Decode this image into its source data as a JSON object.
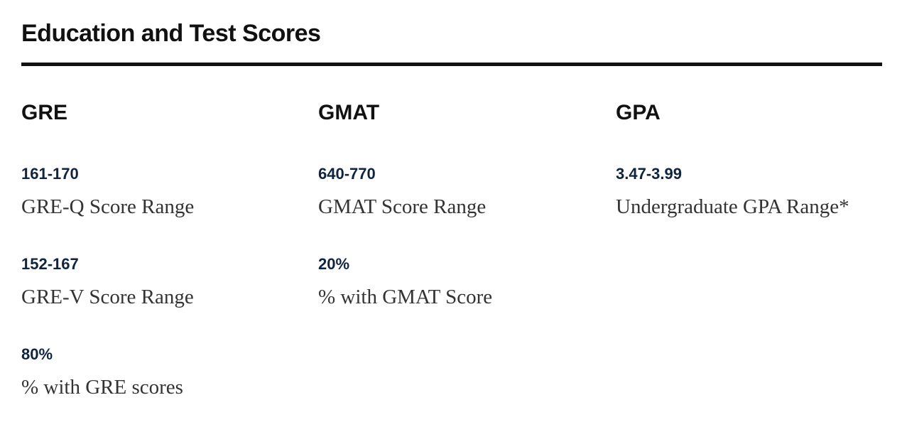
{
  "section": {
    "title": "Education and Test Scores"
  },
  "columns": [
    {
      "heading": "GRE",
      "stats": [
        {
          "value": "161-170",
          "label": "GRE-Q Score Range"
        },
        {
          "value": "152-167",
          "label": "GRE-V Score Range"
        },
        {
          "value": "80%",
          "label": "% with GRE scores"
        }
      ]
    },
    {
      "heading": "GMAT",
      "stats": [
        {
          "value": "640-770",
          "label": "GMAT Score Range"
        },
        {
          "value": "20%",
          "label": "% with GMAT Score"
        }
      ]
    },
    {
      "heading": "GPA",
      "stats": [
        {
          "value": "3.47-3.99",
          "label": "Undergraduate GPA Range*"
        }
      ]
    }
  ]
}
